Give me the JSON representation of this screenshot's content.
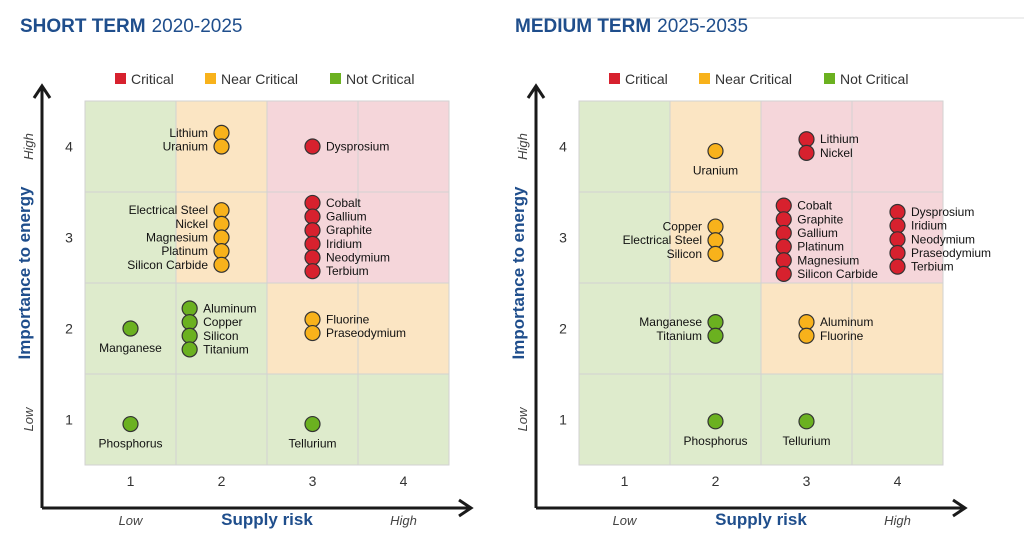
{
  "colors": {
    "critical": "#d7212e",
    "near_critical": "#f8b21b",
    "not_critical": "#6bb120",
    "bg_critical": "#f5d6da",
    "bg_near": "#fbe5c3",
    "bg_not": "#deebcc",
    "title_blue": "#1f4e8c"
  },
  "legend": [
    {
      "key": "critical",
      "label": "Critical"
    },
    {
      "key": "near_critical",
      "label": "Near Critical"
    },
    {
      "key": "not_critical",
      "label": "Not Critical"
    }
  ],
  "chart_data": [
    {
      "type": "scatter",
      "title_bold": "SHORT TERM",
      "title_years": "2020-2025",
      "xlabel": "Supply risk",
      "ylabel": "Importance to energy",
      "x_low": "Low",
      "x_high": "High",
      "y_low": "Low",
      "y_high": "High",
      "xlim": [
        0.5,
        4.5
      ],
      "ylim": [
        0.5,
        4.5
      ],
      "x_ticks": [
        "1",
        "2",
        "3",
        "4"
      ],
      "y_ticks": [
        "1",
        "2",
        "3",
        "4"
      ],
      "grid": [
        [
          "not",
          "near",
          "critical",
          "critical"
        ],
        [
          "not",
          "near",
          "critical",
          "critical"
        ],
        [
          "not",
          "not",
          "near",
          "near"
        ],
        [
          "not",
          "not",
          "not",
          "not"
        ]
      ],
      "groups": [
        {
          "category": "near_critical",
          "x": 2,
          "y_top": 4.15,
          "step": 0.15,
          "label_side": "left",
          "items": [
            "Lithium",
            "Uranium"
          ]
        },
        {
          "category": "critical",
          "x": 3,
          "y_top": 4,
          "step": 0.15,
          "label_side": "right",
          "items": [
            "Dysprosium"
          ]
        },
        {
          "category": "near_critical",
          "x": 2,
          "y_top": 3.3,
          "step": 0.15,
          "label_side": "left",
          "items": [
            "Electrical Steel",
            "Nickel",
            "Magnesium",
            "Platinum",
            "Silicon Carbide"
          ]
        },
        {
          "category": "critical",
          "x": 3,
          "y_top": 3.38,
          "step": 0.15,
          "label_side": "right",
          "items": [
            "Cobalt",
            "Gallium",
            "Graphite",
            "Iridium",
            "Neodymium",
            "Terbium"
          ]
        },
        {
          "category": "not_critical",
          "x": 1.65,
          "y_top": 2.22,
          "step": 0.15,
          "label_side": "right",
          "items": [
            "Aluminum",
            "Copper",
            "Silicon",
            "Titanium"
          ]
        },
        {
          "category": "near_critical",
          "x": 3,
          "y_top": 2.1,
          "step": 0.15,
          "label_side": "right",
          "items": [
            "Fluorine",
            "Praseodymium"
          ]
        },
        {
          "category": "not_critical",
          "x": 1,
          "y_top": 2,
          "step": 0.15,
          "label_side": "below",
          "items": [
            "Manganese"
          ]
        },
        {
          "category": "not_critical",
          "x": 1,
          "y_top": 0.95,
          "step": 0.15,
          "label_side": "below",
          "items": [
            "Phosphorus"
          ]
        },
        {
          "category": "not_critical",
          "x": 3,
          "y_top": 0.95,
          "step": 0.15,
          "label_side": "below",
          "items": [
            "Tellurium"
          ]
        }
      ]
    },
    {
      "type": "scatter",
      "title_bold": "MEDIUM TERM",
      "title_years": "2025-2035",
      "xlabel": "Supply risk",
      "ylabel": "Importance to energy",
      "x_low": "Low",
      "x_high": "High",
      "y_low": "Low",
      "y_high": "High",
      "xlim": [
        0.5,
        4.5
      ],
      "ylim": [
        0.5,
        4.5
      ],
      "x_ticks": [
        "1",
        "2",
        "3",
        "4"
      ],
      "y_ticks": [
        "1",
        "2",
        "3",
        "4"
      ],
      "grid": [
        [
          "not",
          "near",
          "critical",
          "critical"
        ],
        [
          "not",
          "near",
          "critical",
          "critical"
        ],
        [
          "not",
          "not",
          "near",
          "near"
        ],
        [
          "not",
          "not",
          "not",
          "not"
        ]
      ],
      "groups": [
        {
          "category": "critical",
          "x": 3,
          "y_top": 4.08,
          "step": 0.15,
          "label_side": "right",
          "items": [
            "Lithium",
            "Nickel"
          ]
        },
        {
          "category": "near_critical",
          "x": 2,
          "y_top": 3.95,
          "step": 0.15,
          "label_side": "below",
          "items": [
            "Uranium"
          ]
        },
        {
          "category": "near_critical",
          "x": 2,
          "y_top": 3.12,
          "step": 0.15,
          "label_side": "left",
          "items": [
            "Copper",
            "Electrical Steel",
            "Silicon"
          ]
        },
        {
          "category": "critical",
          "x": 2.75,
          "y_top": 3.35,
          "step": 0.15,
          "label_side": "right",
          "items": [
            "Cobalt",
            "Graphite",
            "Gallium",
            "Platinum",
            "Magnesium",
            "Silicon Carbide"
          ]
        },
        {
          "category": "critical",
          "x": 4,
          "y_top": 3.28,
          "step": 0.15,
          "label_side": "right",
          "items": [
            "Dysprosium",
            "Iridium",
            "Neodymium",
            "Praseodymium",
            "Terbium"
          ]
        },
        {
          "category": "not_critical",
          "x": 2,
          "y_top": 2.07,
          "step": 0.15,
          "label_side": "left",
          "items": [
            "Manganese",
            "Titanium"
          ]
        },
        {
          "category": "near_critical",
          "x": 3,
          "y_top": 2.07,
          "step": 0.15,
          "label_side": "right",
          "items": [
            "Aluminum",
            "Fluorine"
          ]
        },
        {
          "category": "not_critical",
          "x": 2,
          "y_top": 0.98,
          "step": 0.15,
          "label_side": "below",
          "items": [
            "Phosphorus"
          ]
        },
        {
          "category": "not_critical",
          "x": 3,
          "y_top": 0.98,
          "step": 0.15,
          "label_side": "below",
          "items": [
            "Tellurium"
          ]
        }
      ]
    }
  ]
}
